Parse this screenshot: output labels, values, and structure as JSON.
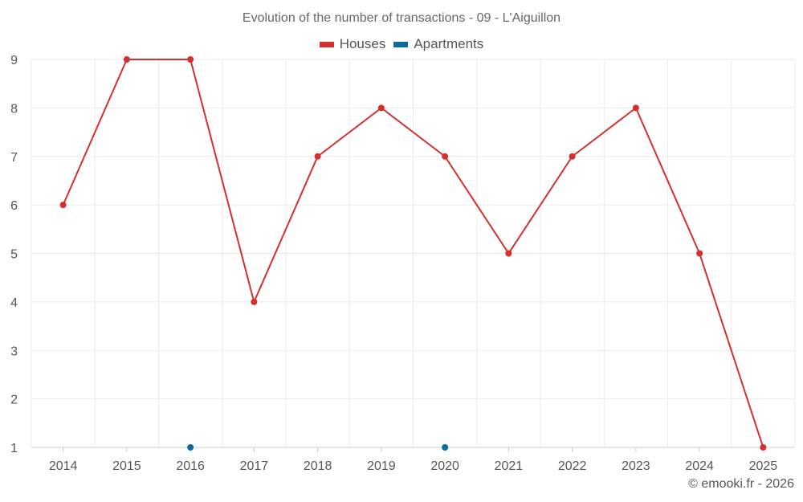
{
  "chart_data": {
    "type": "line",
    "title": "Evolution of the number of transactions - 09 - L'Aiguillon",
    "x": [
      "2014",
      "2015",
      "2016",
      "2017",
      "2018",
      "2019",
      "2020",
      "2021",
      "2022",
      "2023",
      "2024",
      "2025"
    ],
    "series": [
      {
        "name": "Houses",
        "color": "#d32f2f",
        "values": [
          6,
          9,
          9,
          4,
          7,
          8,
          7,
          5,
          7,
          8,
          5,
          1
        ]
      },
      {
        "name": "Apartments",
        "color": "#0b6a9c",
        "values": [
          null,
          null,
          1,
          null,
          null,
          null,
          1,
          null,
          null,
          null,
          null,
          null
        ]
      }
    ],
    "yticks": [
      1,
      2,
      3,
      4,
      5,
      6,
      7,
      8,
      9
    ],
    "ylim": [
      1,
      9
    ],
    "grid": true,
    "legend_position": "top"
  },
  "footer": {
    "copyright": "© emooki.fr - 2026"
  }
}
